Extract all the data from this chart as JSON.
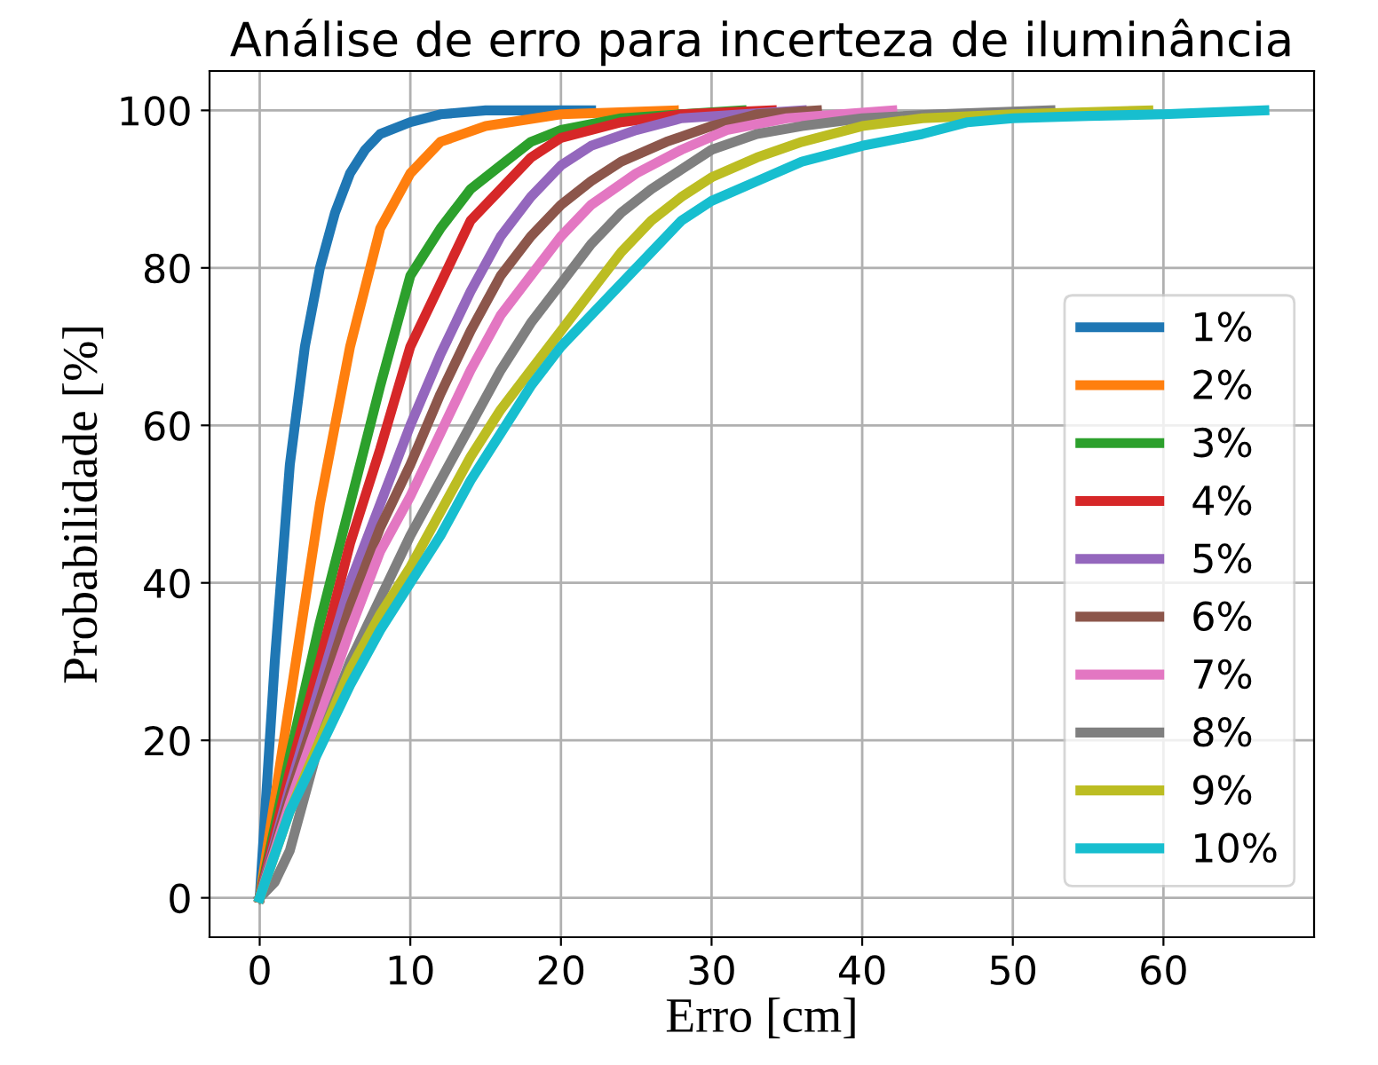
{
  "chart_data": {
    "type": "line",
    "title": "Análise de erro para incerteza de iluminância",
    "xlabel": "Erro [cm]",
    "ylabel": "Probabilidade [%]",
    "xlim": [
      -3.33,
      70.0
    ],
    "ylim": [
      -5,
      105
    ],
    "xticks": [
      0,
      10,
      20,
      30,
      40,
      50,
      60
    ],
    "yticks": [
      0,
      20,
      40,
      60,
      80,
      100
    ],
    "grid": true,
    "legend": "right",
    "marker": "none",
    "line_style": "solid",
    "series": [
      {
        "name": "1%",
        "color": "#1f77b4",
        "x": [
          0,
          1,
          2,
          3,
          4,
          5,
          6,
          7,
          8,
          10,
          12,
          15,
          22
        ],
        "values": [
          0,
          30,
          55,
          70,
          80,
          87,
          92,
          95,
          97,
          98.5,
          99.5,
          100,
          100
        ]
      },
      {
        "name": "2%",
        "color": "#ff7f0e",
        "x": [
          0,
          2,
          4,
          6,
          8,
          10,
          12,
          15,
          20,
          27.5
        ],
        "values": [
          0,
          25,
          50,
          70,
          85,
          92,
          96,
          98,
          99.5,
          100
        ]
      },
      {
        "name": "3%",
        "color": "#2ca02c",
        "x": [
          0,
          2,
          4,
          6,
          8,
          10,
          12,
          14,
          16,
          18,
          20,
          24,
          32
        ],
        "values": [
          0,
          18,
          35,
          50,
          65,
          79,
          85,
          90,
          93,
          96,
          97.5,
          99,
          100
        ]
      },
      {
        "name": "4%",
        "color": "#d62728",
        "x": [
          0,
          2,
          4,
          6,
          8,
          10,
          12,
          14,
          16,
          18,
          20,
          24,
          28,
          34
        ],
        "values": [
          0,
          16,
          30,
          45,
          57,
          70,
          78,
          86,
          90,
          94,
          96.5,
          98.5,
          99.5,
          100
        ]
      },
      {
        "name": "5%",
        "color": "#9467bd",
        "x": [
          0,
          2,
          4,
          6,
          8,
          10,
          12,
          14,
          16,
          18,
          20,
          22,
          25,
          28,
          36
        ],
        "values": [
          0,
          14,
          27,
          40,
          50,
          60,
          69,
          77,
          84,
          89,
          93,
          95.5,
          97.5,
          99,
          100
        ]
      },
      {
        "name": "6%",
        "color": "#8c564b",
        "x": [
          0,
          2,
          4,
          6,
          8,
          10,
          12,
          14,
          16,
          18,
          20,
          22,
          24,
          27,
          30,
          33,
          37
        ],
        "values": [
          0,
          13,
          25,
          37,
          47,
          55,
          64,
          72,
          79,
          84,
          88,
          91,
          93.5,
          96,
          98,
          99.5,
          100
        ]
      },
      {
        "name": "7%",
        "color": "#e377c2",
        "x": [
          0,
          2,
          4,
          6,
          8,
          10,
          12,
          14,
          16,
          18,
          20,
          22,
          25,
          28,
          31,
          35,
          42
        ],
        "values": [
          0,
          12,
          23,
          34,
          44,
          51,
          59,
          67,
          74,
          79,
          84,
          88,
          92,
          95,
          97.5,
          99,
          100
        ]
      },
      {
        "name": "8%",
        "color": "#7f7f7f",
        "x": [
          0,
          1,
          2,
          3,
          4,
          6,
          8,
          10,
          12,
          14,
          16,
          18,
          20,
          22,
          24,
          26,
          28,
          30,
          33,
          36,
          40,
          45,
          52.5
        ],
        "values": [
          0,
          2,
          6,
          13,
          20,
          30,
          38,
          46,
          53,
          60,
          67,
          73,
          78,
          83,
          87,
          90,
          92.5,
          95,
          97,
          98,
          99,
          99.5,
          100
        ]
      },
      {
        "name": "9%",
        "color": "#bcbd22",
        "x": [
          0,
          2,
          4,
          6,
          8,
          10,
          12,
          14,
          16,
          18,
          20,
          22,
          24,
          26,
          28,
          30,
          33,
          36,
          40,
          44,
          50,
          59
        ],
        "values": [
          0,
          11,
          20,
          29,
          36,
          42,
          49,
          56,
          62,
          67,
          72,
          77,
          82,
          86,
          89,
          91.5,
          94,
          96,
          98,
          99,
          99.5,
          100
        ]
      },
      {
        "name": "10%",
        "color": "#17becf",
        "x": [
          0,
          2,
          4,
          6,
          8,
          10,
          12,
          14,
          16,
          18,
          20,
          22,
          24,
          26,
          28,
          30,
          33,
          36,
          40,
          44,
          47,
          50,
          55,
          60,
          66.7
        ],
        "values": [
          0,
          11,
          19,
          27,
          34,
          40,
          46,
          53,
          59,
          65,
          70,
          74,
          78,
          82,
          86,
          88.5,
          91,
          93.5,
          95.5,
          97,
          98.5,
          99,
          99.3,
          99.5,
          100
        ]
      }
    ]
  }
}
